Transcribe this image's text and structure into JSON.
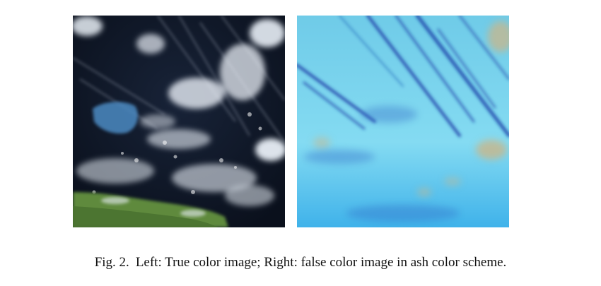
{
  "figure": {
    "label": "Fig. 2.",
    "caption": "Left: True color image; Right: false color image in ash color scheme."
  },
  "panels": [
    {
      "id": "left",
      "name": "true-color-image",
      "description_icon": "satellite-image-icon"
    },
    {
      "id": "right",
      "name": "ash-false-color-image",
      "description_icon": "satellite-image-icon"
    }
  ],
  "colors": {
    "ocean_dark": "#0d1424",
    "cloud_white": "#e8eef6",
    "land_green": "#5f8a3c",
    "ash_background": "#7cd6ee",
    "ash_streak": "#1c3fa8",
    "ash_tan": "#c9b58a"
  }
}
